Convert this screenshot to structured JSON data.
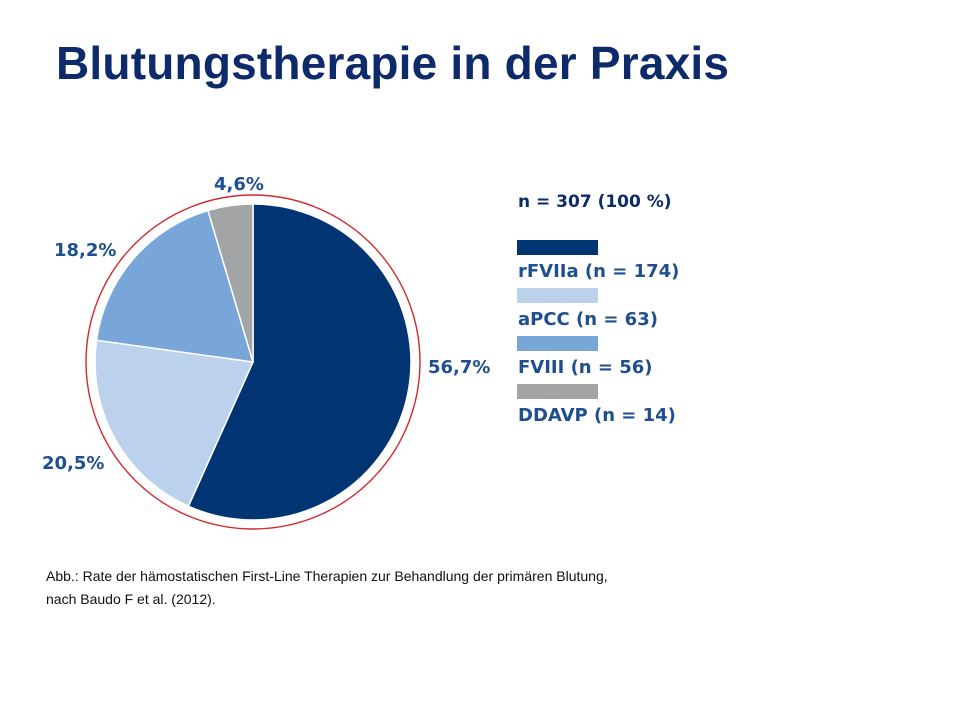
{
  "slide": {
    "title": "Blutungstherapie in der Praxis"
  },
  "chart_data": {
    "type": "pie",
    "total_label": "n = 307 (100 %)",
    "slices": [
      {
        "label": "rFVIIa (n = 174)",
        "value": 56.7,
        "value_label": "56,7%",
        "color": "#003473"
      },
      {
        "label": "aPCC (n = 63)",
        "value": 20.5,
        "value_label": "20,5%",
        "color": "#bcd1ec"
      },
      {
        "label": "FVIII (n = 56)",
        "value": 18.2,
        "value_label": "18,2%",
        "color": "#79a6d8"
      },
      {
        "label": "DDAVP (n = 14)",
        "value": 4.6,
        "value_label": "4,6%",
        "color": "#a3a4a6"
      }
    ],
    "start_angle_deg": 0,
    "direction": "clockwise",
    "ring_color": "#d2282e"
  },
  "caption": {
    "line1": "Abb.: Rate der hämostatischen First-Line Therapien zur Behandlung der primären Blutung,",
    "line2": "nach Baudo F et al. (2012)."
  }
}
